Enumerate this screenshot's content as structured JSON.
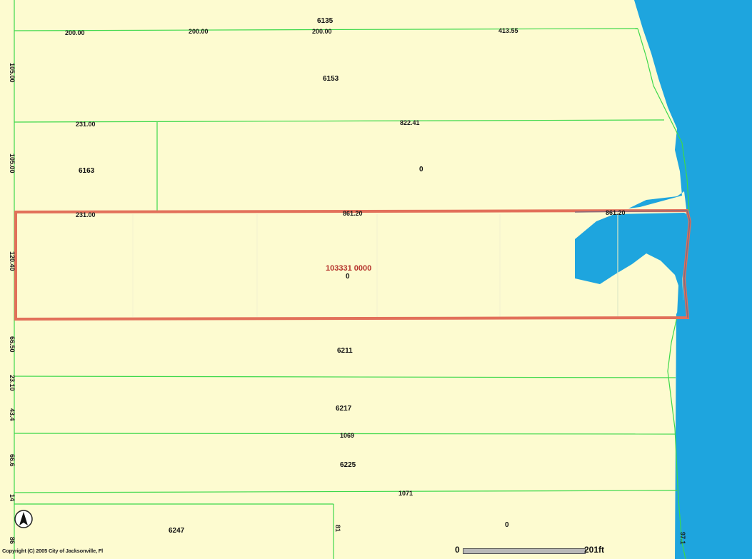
{
  "colors": {
    "land": "#fdfbd0",
    "water": "#1ea5de",
    "parcel_line": "#3dd84a",
    "selection": "#e2705a",
    "selection_label": "#b4322a"
  },
  "icons": {
    "north_arrow": "north-arrow-icon"
  },
  "copyright": "Copyright (C) 2005 City of Jacksonville, Fl",
  "scale_bar": {
    "start": "0",
    "end": "201ft"
  },
  "selected_parcel": {
    "id": "103331 0000",
    "number": "0",
    "top_dimension": "861.20",
    "top_dimension_right": "861.20"
  },
  "parcel_labels": {
    "p6135": "6135",
    "p6153": "6153",
    "p6163": "6163",
    "p0_north": "0",
    "p6211": "6211",
    "p6217": "6217",
    "p1069": "1069",
    "p6225": "6225",
    "p1071": "1071",
    "p6247": "6247",
    "p0_south": "0"
  },
  "dimension_labels": {
    "top_200a": "200.00",
    "top_200b": "200.00",
    "top_200c": "200.00",
    "top_413": "413.55",
    "d231_upper": "231.00",
    "d822": "822.41",
    "d231_lower": "231.00",
    "left_105a": "105.00",
    "left_105b": "105.00",
    "left_120": "120.40",
    "left_66_50": "66.50",
    "left_23_10": "23.10",
    "left_43_4": "43.4",
    "left_66_6": "66.6",
    "left_14": "14",
    "left_86": "86",
    "d81": "81",
    "d97": "97.1"
  }
}
